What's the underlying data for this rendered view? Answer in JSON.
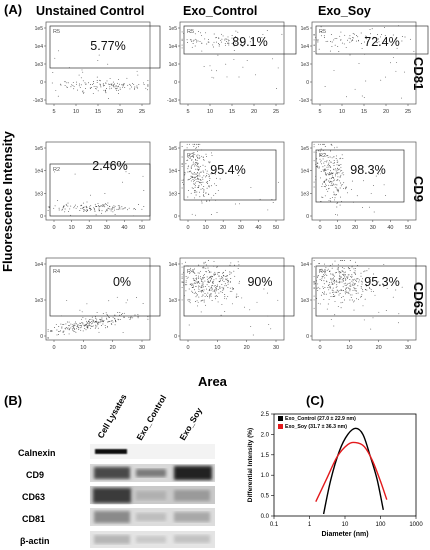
{
  "panels": {
    "A": "(A)",
    "B": "(B)",
    "C": "(C)"
  },
  "flow": {
    "columns": [
      "Unstained Control",
      "Exo_Control",
      "Exo_Soy"
    ],
    "rows": [
      "CD81",
      "CD9",
      "CD63"
    ],
    "y_axis_title": "Fluorescence Intensity",
    "x_axis_title": "Area",
    "cells": [
      [
        {
          "gate": "R5",
          "pct": "5.77%"
        },
        {
          "gate": "R5",
          "pct": "89.1%"
        },
        {
          "gate": "R5",
          "pct": "72.4%"
        }
      ],
      [
        {
          "gate": "R2",
          "pct": "2.46%"
        },
        {
          "gate": "R2",
          "pct": "95.4%"
        },
        {
          "gate": "R2",
          "pct": "98.3%"
        }
      ],
      [
        {
          "gate": "R4",
          "pct": "0%"
        },
        {
          "gate": "R4",
          "pct": "90%"
        },
        {
          "gate": "R4",
          "pct": "95.3%"
        }
      ]
    ],
    "row_axes": [
      {
        "y_ticks": [
          "1e5",
          "1e4",
          "1e3",
          "0",
          "-1e3"
        ],
        "x_ticks": [
          "5",
          "10",
          "15",
          "20",
          "25"
        ]
      },
      {
        "y_ticks": [
          "1e5",
          "1e4",
          "1e3",
          "0"
        ],
        "x_ticks": [
          "0",
          "10",
          "20",
          "30",
          "40",
          "50"
        ]
      },
      {
        "y_ticks": [
          "1e4",
          "1e3",
          "0"
        ],
        "x_ticks": [
          "0",
          "10",
          "20",
          "30"
        ]
      }
    ]
  },
  "western": {
    "lanes": [
      "Cell Lysates",
      "Exo_Control",
      "Exo_Soy"
    ],
    "bands": [
      "Calnexin",
      "CD9",
      "CD63",
      "CD81",
      "β-actin"
    ]
  },
  "chart_data": {
    "type": "line",
    "xlabel": "Diameter (nm)",
    "ylabel": "Differential Intensity (%)",
    "x_scale": "log",
    "xlim": [
      0.1,
      1000
    ],
    "ylim": [
      0,
      2.5
    ],
    "x_ticks": [
      "0.1",
      "1",
      "10",
      "100",
      "1000"
    ],
    "y_ticks": [
      "0.0",
      "0.5",
      "1.0",
      "1.5",
      "2.0",
      "2.5"
    ],
    "legend_position": "top-left",
    "series": [
      {
        "name": "Exo_Control (27.0 ± 22.9 nm)",
        "color": "#000000",
        "x": [
          2.5,
          4,
          7,
          12,
          20,
          32,
          50,
          80,
          120
        ],
        "y": [
          0.05,
          0.9,
          1.6,
          2.0,
          2.15,
          2.0,
          1.5,
          0.9,
          0.15
        ]
      },
      {
        "name": "Exo_Soy (31.7 ± 36.3 nm)",
        "color": "#e31a1c",
        "x": [
          1.5,
          3,
          6,
          12,
          20,
          35,
          60,
          100,
          150
        ],
        "y": [
          0.35,
          0.9,
          1.45,
          1.75,
          1.8,
          1.7,
          1.35,
          0.85,
          0.4
        ]
      }
    ]
  }
}
